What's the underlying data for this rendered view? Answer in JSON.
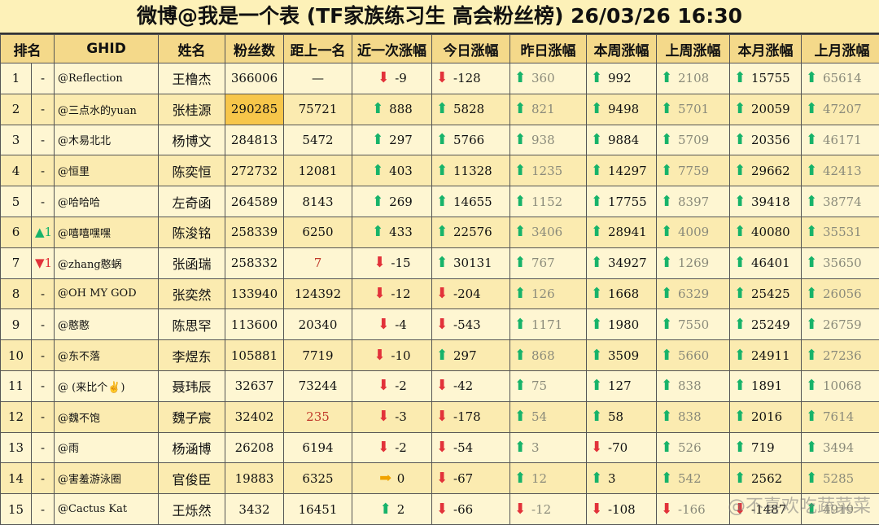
{
  "title": "微博@我是一个表 (TF家族练习生 高会粉丝榜)  26/03/26 16:30",
  "watermark": "@不喜欢吃蔬菜菜",
  "headers": [
    "排名",
    "GHID",
    "姓名",
    "粉丝数",
    "距上一名",
    "近一次涨幅",
    "今日涨幅",
    "昨日涨幅",
    "本周涨幅",
    "上周涨幅",
    "本月涨幅",
    "上月涨幅"
  ],
  "rows": [
    {
      "rank": "1",
      "change": "-",
      "ghid": "@Reflection",
      "name": "王橹杰",
      "fans": "366006",
      "gap": "—",
      "recent": [
        "down",
        "-9"
      ],
      "today": [
        "down",
        "-128"
      ],
      "yesterday": [
        "up",
        "360"
      ],
      "week": [
        "up",
        "992"
      ],
      "lastweek": [
        "up",
        "2108"
      ],
      "month": [
        "up",
        "15755"
      ],
      "lastmonth": [
        "up",
        "65614"
      ]
    },
    {
      "rank": "2",
      "change": "-",
      "ghid": "@三点水的yuan",
      "name": "张桂源",
      "fans": "290285",
      "gap": "75721",
      "recent": [
        "up",
        "888"
      ],
      "today": [
        "up",
        "5828"
      ],
      "yesterday": [
        "up",
        "821"
      ],
      "week": [
        "up",
        "9498"
      ],
      "lastweek": [
        "up",
        "5701"
      ],
      "month": [
        "up",
        "20059"
      ],
      "lastmonth": [
        "up",
        "47207"
      ]
    },
    {
      "rank": "3",
      "change": "-",
      "ghid": "@木易北北",
      "name": "杨博文",
      "fans": "284813",
      "gap": "5472",
      "recent": [
        "up",
        "297"
      ],
      "today": [
        "up",
        "5766"
      ],
      "yesterday": [
        "up",
        "938"
      ],
      "week": [
        "up",
        "9884"
      ],
      "lastweek": [
        "up",
        "5709"
      ],
      "month": [
        "up",
        "20356"
      ],
      "lastmonth": [
        "up",
        "46171"
      ]
    },
    {
      "rank": "4",
      "change": "-",
      "ghid": "@恒里",
      "name": "陈奕恒",
      "fans": "272732",
      "gap": "12081",
      "recent": [
        "up",
        "403"
      ],
      "today": [
        "up",
        "11328"
      ],
      "yesterday": [
        "up",
        "1235"
      ],
      "week": [
        "up",
        "14297"
      ],
      "lastweek": [
        "up",
        "7759"
      ],
      "month": [
        "up",
        "29662"
      ],
      "lastmonth": [
        "up",
        "42413"
      ]
    },
    {
      "rank": "5",
      "change": "-",
      "ghid": "@哈哈哈",
      "name": "左奇函",
      "fans": "264589",
      "gap": "8143",
      "recent": [
        "up",
        "269"
      ],
      "today": [
        "up",
        "14655"
      ],
      "yesterday": [
        "up",
        "1152"
      ],
      "week": [
        "up",
        "17755"
      ],
      "lastweek": [
        "up",
        "8397"
      ],
      "month": [
        "up",
        "39418"
      ],
      "lastmonth": [
        "up",
        "38774"
      ]
    },
    {
      "rank": "6",
      "change": "▲1",
      "ghid": "@嘻嘻嘿嘿",
      "name": "陈浚铭",
      "fans": "258339",
      "gap": "6250",
      "recent": [
        "up",
        "433"
      ],
      "today": [
        "up",
        "22576"
      ],
      "yesterday": [
        "up",
        "3406"
      ],
      "week": [
        "up",
        "28941"
      ],
      "lastweek": [
        "up",
        "4009"
      ],
      "month": [
        "up",
        "40080"
      ],
      "lastmonth": [
        "up",
        "35531"
      ]
    },
    {
      "rank": "7",
      "change": "▼1",
      "ghid": "@zhang憨蜗",
      "name": "张函瑞",
      "fans": "258332",
      "gap": "7",
      "recent": [
        "down",
        "-15"
      ],
      "today": [
        "up",
        "30131"
      ],
      "yesterday": [
        "up",
        "767"
      ],
      "week": [
        "up",
        "34927"
      ],
      "lastweek": [
        "up",
        "1269"
      ],
      "month": [
        "up",
        "46401"
      ],
      "lastmonth": [
        "up",
        "35650"
      ]
    },
    {
      "rank": "8",
      "change": "-",
      "ghid": "@OH MY GOD",
      "name": "张奕然",
      "fans": "133940",
      "gap": "124392",
      "recent": [
        "down",
        "-12"
      ],
      "today": [
        "down",
        "-204"
      ],
      "yesterday": [
        "up",
        "126"
      ],
      "week": [
        "up",
        "1668"
      ],
      "lastweek": [
        "up",
        "6329"
      ],
      "month": [
        "up",
        "25425"
      ],
      "lastmonth": [
        "up",
        "26056"
      ]
    },
    {
      "rank": "9",
      "change": "-",
      "ghid": "@憨憨",
      "name": "陈思罕",
      "fans": "113600",
      "gap": "20340",
      "recent": [
        "down",
        "-4"
      ],
      "today": [
        "down",
        "-543"
      ],
      "yesterday": [
        "up",
        "1171"
      ],
      "week": [
        "up",
        "1980"
      ],
      "lastweek": [
        "up",
        "7550"
      ],
      "month": [
        "up",
        "25249"
      ],
      "lastmonth": [
        "up",
        "26759"
      ]
    },
    {
      "rank": "10",
      "change": "-",
      "ghid": "@东不落",
      "name": "李煜东",
      "fans": "105881",
      "gap": "7719",
      "recent": [
        "down",
        "-10"
      ],
      "today": [
        "up",
        "297"
      ],
      "yesterday": [
        "up",
        "868"
      ],
      "week": [
        "up",
        "3509"
      ],
      "lastweek": [
        "up",
        "5660"
      ],
      "month": [
        "up",
        "24911"
      ],
      "lastmonth": [
        "up",
        "27236"
      ]
    },
    {
      "rank": "11",
      "change": "-",
      "ghid": "@ (来比个✌)",
      "name": "聂玮辰",
      "fans": "32637",
      "gap": "73244",
      "recent": [
        "down",
        "-2"
      ],
      "today": [
        "down",
        "-42"
      ],
      "yesterday": [
        "up",
        "75"
      ],
      "week": [
        "up",
        "127"
      ],
      "lastweek": [
        "up",
        "838"
      ],
      "month": [
        "up",
        "1891"
      ],
      "lastmonth": [
        "up",
        "10068"
      ]
    },
    {
      "rank": "12",
      "change": "-",
      "ghid": "@魏不饱",
      "name": "魏子宸",
      "fans": "32402",
      "gap": "235",
      "recent": [
        "down",
        "-3"
      ],
      "today": [
        "down",
        "-178"
      ],
      "yesterday": [
        "up",
        "54"
      ],
      "week": [
        "up",
        "58"
      ],
      "lastweek": [
        "up",
        "838"
      ],
      "month": [
        "up",
        "2016"
      ],
      "lastmonth": [
        "up",
        "7614"
      ]
    },
    {
      "rank": "13",
      "change": "-",
      "ghid": "@雨",
      "name": "杨涵博",
      "fans": "26208",
      "gap": "6194",
      "recent": [
        "down",
        "-2"
      ],
      "today": [
        "down",
        "-54"
      ],
      "yesterday": [
        "up",
        "3"
      ],
      "week": [
        "down",
        "-70"
      ],
      "lastweek": [
        "up",
        "526"
      ],
      "month": [
        "up",
        "719"
      ],
      "lastmonth": [
        "up",
        "3494"
      ]
    },
    {
      "rank": "14",
      "change": "-",
      "ghid": "@害羞游泳圈",
      "name": "官俊臣",
      "fans": "19883",
      "gap": "6325",
      "recent": [
        "flat",
        "0"
      ],
      "today": [
        "down",
        "-67"
      ],
      "yesterday": [
        "up",
        "12"
      ],
      "week": [
        "up",
        "3"
      ],
      "lastweek": [
        "up",
        "542"
      ],
      "month": [
        "up",
        "2562"
      ],
      "lastmonth": [
        "up",
        "5285"
      ]
    },
    {
      "rank": "15",
      "change": "-",
      "ghid": "@Cactus Kat",
      "name": "王烁然",
      "fans": "3432",
      "gap": "16451",
      "recent": [
        "up",
        "2"
      ],
      "today": [
        "down",
        "-66"
      ],
      "yesterday": [
        "down",
        "-12"
      ],
      "week": [
        "down",
        "-108"
      ],
      "lastweek": [
        "down",
        "-166"
      ],
      "month": [
        "down",
        "-1487"
      ],
      "lastmonth": [
        "up",
        "4919"
      ]
    }
  ]
}
